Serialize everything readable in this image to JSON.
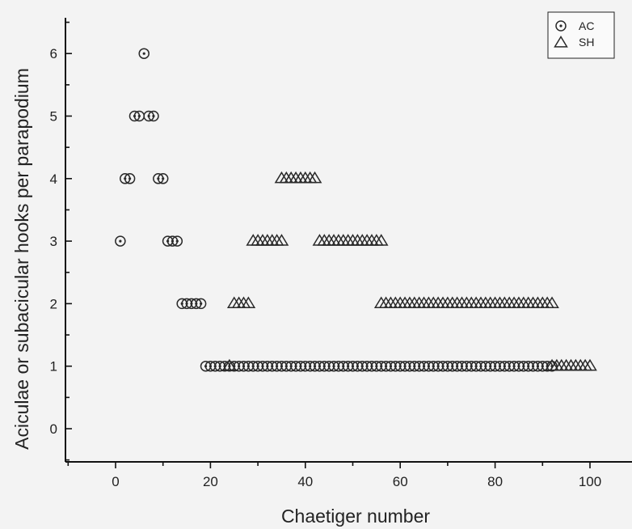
{
  "chart_data": {
    "type": "scatter",
    "xlabel": "Chaetiger number",
    "ylabel": "Aciculae or subacicular hooks per parapodium",
    "xlim": [
      -10,
      110
    ],
    "ylim": [
      -0.5,
      6.5
    ],
    "x_ticks": [
      0,
      20,
      40,
      60,
      80,
      100
    ],
    "y_ticks": [
      0,
      1,
      2,
      3,
      4,
      5,
      6
    ],
    "legend_position": "top-right",
    "grid": false,
    "series": [
      {
        "name": "AC",
        "marker": "circle",
        "segments": [
          {
            "x_start": 1,
            "x_end": 1,
            "y": 3
          },
          {
            "x_start": 2,
            "x_end": 3,
            "y": 4
          },
          {
            "x_start": 4,
            "x_end": 5,
            "y": 5
          },
          {
            "x_start": 6,
            "x_end": 6,
            "y": 6
          },
          {
            "x_start": 7,
            "x_end": 8,
            "y": 5
          },
          {
            "x_start": 9,
            "x_end": 10,
            "y": 4
          },
          {
            "x_start": 11,
            "x_end": 13,
            "y": 3
          },
          {
            "x_start": 14,
            "x_end": 18,
            "y": 2
          },
          {
            "x_start": 19,
            "x_end": 92,
            "y": 1
          }
        ]
      },
      {
        "name": "SH",
        "marker": "triangle",
        "segments": [
          {
            "x_start": 24,
            "x_end": 24,
            "y": 1
          },
          {
            "x_start": 25,
            "x_end": 28,
            "y": 2
          },
          {
            "x_start": 29,
            "x_end": 35,
            "y": 3
          },
          {
            "x_start": 35,
            "x_end": 42,
            "y": 4
          },
          {
            "x_start": 43,
            "x_end": 56,
            "y": 3
          },
          {
            "x_start": 56,
            "x_end": 92,
            "y": 2
          },
          {
            "x_start": 92,
            "x_end": 100,
            "y": 1
          }
        ]
      }
    ]
  }
}
